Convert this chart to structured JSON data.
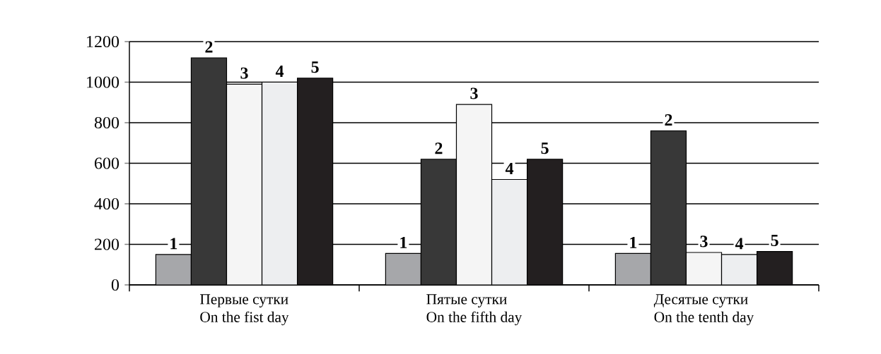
{
  "chart_data": {
    "type": "bar",
    "categories": [
      "Первые сутки\nOn the fist day",
      "Пятые сутки\nOn the fifth day",
      "Десятые сутки\nOn the tenth day"
    ],
    "series": [
      {
        "name": "1",
        "color": "#a6a7aa",
        "values": [
          150,
          155,
          155
        ]
      },
      {
        "name": "2",
        "color": "#383838",
        "values": [
          1120,
          620,
          760
        ]
      },
      {
        "name": "3",
        "color": "#f5f5f5",
        "values": [
          990,
          890,
          160
        ]
      },
      {
        "name": "4",
        "color": "#edeef0",
        "values": [
          1000,
          520,
          150
        ]
      },
      {
        "name": "5",
        "color": "#231f20",
        "values": [
          1020,
          620,
          165
        ]
      }
    ],
    "ylim": [
      0,
      1200
    ],
    "yticks": [
      0,
      200,
      400,
      600,
      800,
      1000,
      1200
    ],
    "grid": "y"
  }
}
